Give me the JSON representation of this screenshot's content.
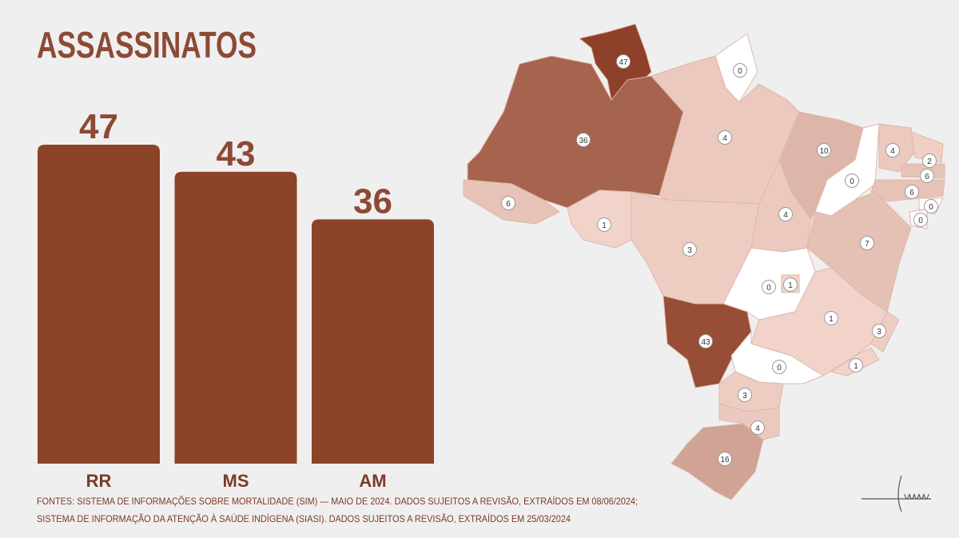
{
  "chart_data": [
    {
      "type": "bar",
      "title": "ASSASSINATOS",
      "categories": [
        "RR",
        "MS",
        "AM"
      ],
      "values": [
        47,
        43,
        36
      ],
      "color": "#8c4429",
      "source": [
        "FONTES: SISTEMA DE INFORMAÇÕES SOBRE MORTALIDADE (SIM) — MAIO DE 2024. DADOS SUJEITOS A REVISÃO, EXTRAÍDOS EM 08/06/2024;",
        "SISTEMA DE INFORMAÇÃO DA ATENÇÃO À SAÚDE INDÍGENA (SIASI). DADOS SUJEITOS A REVISÃO, EXTRAÍDOS EM 25/03/2024"
      ]
    },
    {
      "type": "map",
      "values": [
        47,
        0,
        36,
        4,
        10,
        0,
        4,
        2,
        6,
        6,
        0,
        0,
        6,
        1,
        3,
        4,
        7,
        0,
        1,
        1,
        3,
        1,
        43,
        0,
        3,
        4,
        16
      ]
    }
  ]
}
